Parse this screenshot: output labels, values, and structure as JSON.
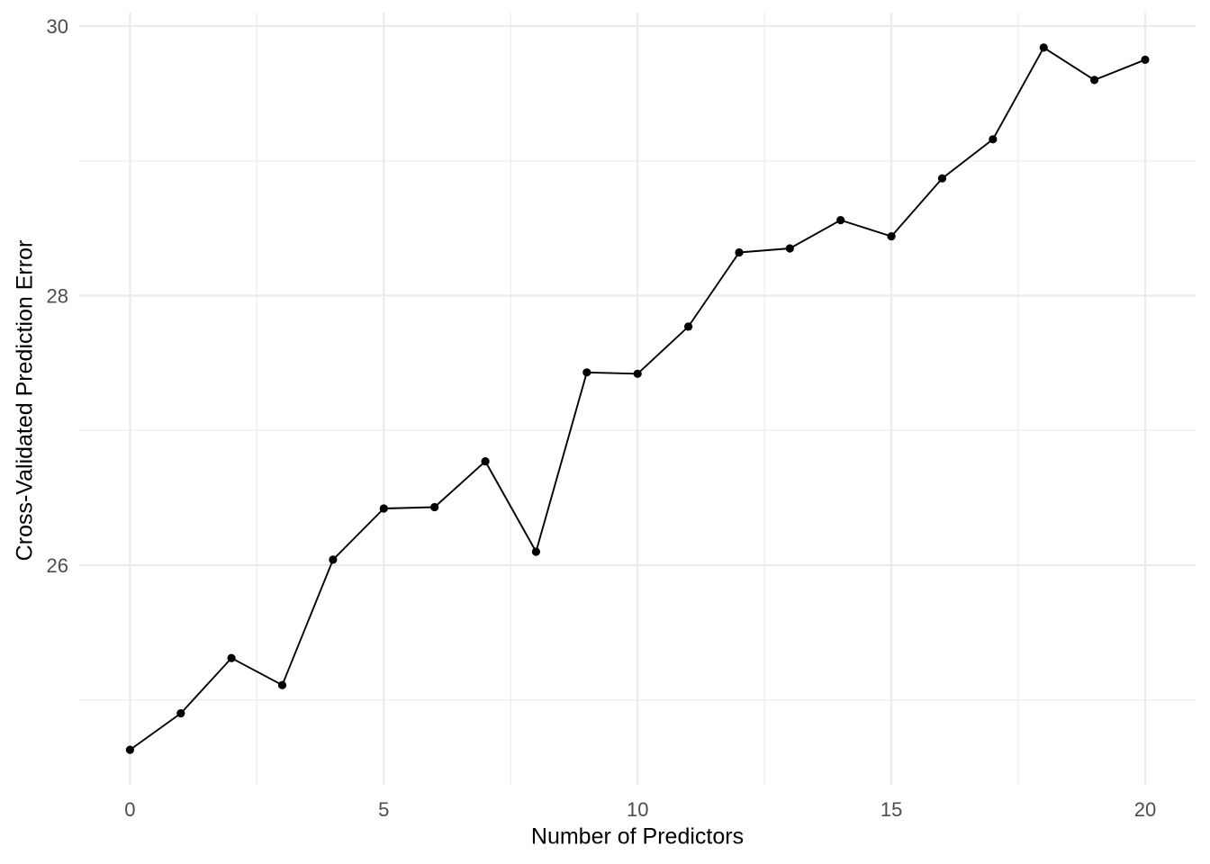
{
  "chart_data": {
    "type": "line",
    "title": "",
    "xlabel": "Number of Predictors",
    "ylabel": "Cross-Validated Prediction Error",
    "x": [
      0,
      1,
      2,
      3,
      4,
      5,
      6,
      7,
      8,
      9,
      10,
      11,
      12,
      13,
      14,
      15,
      16,
      17,
      18,
      19,
      20
    ],
    "values": [
      24.63,
      24.9,
      25.31,
      25.11,
      26.04,
      26.42,
      26.43,
      26.77,
      26.1,
      27.43,
      27.42,
      27.77,
      28.32,
      28.35,
      28.56,
      28.44,
      28.87,
      29.16,
      29.84,
      29.6,
      29.75
    ],
    "xlim": [
      -1,
      21
    ],
    "ylim": [
      24.37,
      30.1
    ],
    "x_major_ticks": [
      0,
      5,
      10,
      15,
      20
    ],
    "x_tick_labels": [
      "0",
      "5",
      "10",
      "15",
      "20"
    ],
    "x_minor_ticks": [
      2.5,
      7.5,
      12.5,
      17.5
    ],
    "y_major_ticks": [
      26,
      28,
      30
    ],
    "y_tick_labels": [
      "26",
      "28",
      "30"
    ],
    "y_minor_ticks": [
      25,
      27,
      29
    ],
    "grid": "major+minor",
    "legend": "none",
    "marker": "filled-circle",
    "colors": {
      "line": "#000000",
      "point": "#000000",
      "grid_major": "#ebebeb",
      "grid_minor": "#efefef",
      "tick_label": "#4d4d4d",
      "axis_title": "#000000",
      "background": "#ffffff"
    }
  }
}
